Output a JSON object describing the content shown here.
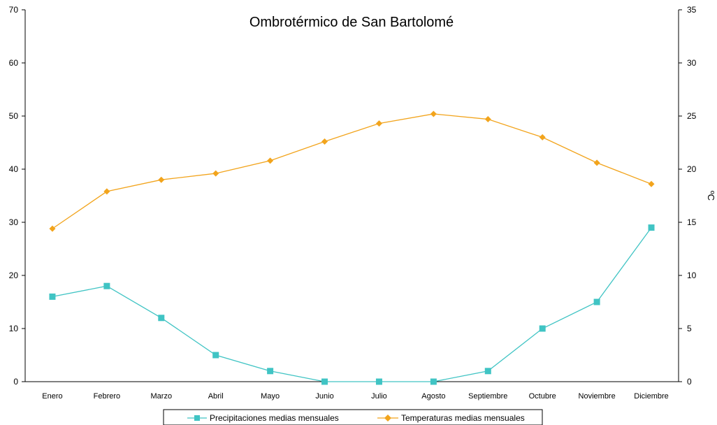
{
  "chart_data": {
    "type": "line",
    "title": "Ombrotérmico de San Bartolomé",
    "categories": [
      "Enero",
      "Febrero",
      "Marzo",
      "Abril",
      "Mayo",
      "Junio",
      "Julio",
      "Agosto",
      "Septiembre",
      "Octubre",
      "Noviembre",
      "Diciembre"
    ],
    "y_left": {
      "label": "",
      "ylim": [
        0,
        70
      ],
      "ticks": [
        0,
        10,
        20,
        30,
        40,
        50,
        60,
        70
      ]
    },
    "y_right": {
      "label": "ºC",
      "ylim": [
        0,
        35
      ],
      "ticks": [
        0,
        5,
        10,
        15,
        20,
        25,
        30,
        35
      ]
    },
    "grid": false,
    "legend_position": "bottom",
    "series": [
      {
        "name": "Precipitaciones medias mensuales",
        "axis": "left",
        "color": "#40c4c4",
        "marker": "square",
        "values": [
          16,
          18,
          12,
          5,
          2,
          0,
          0,
          0,
          2,
          10,
          15,
          29
        ]
      },
      {
        "name": "Temperaturas medias mensuales",
        "axis": "right",
        "color": "#f2a41c",
        "marker": "diamond",
        "values": [
          14.4,
          17.9,
          19.0,
          19.6,
          20.8,
          22.6,
          24.3,
          25.2,
          24.7,
          23.0,
          20.6,
          18.6
        ]
      }
    ]
  }
}
